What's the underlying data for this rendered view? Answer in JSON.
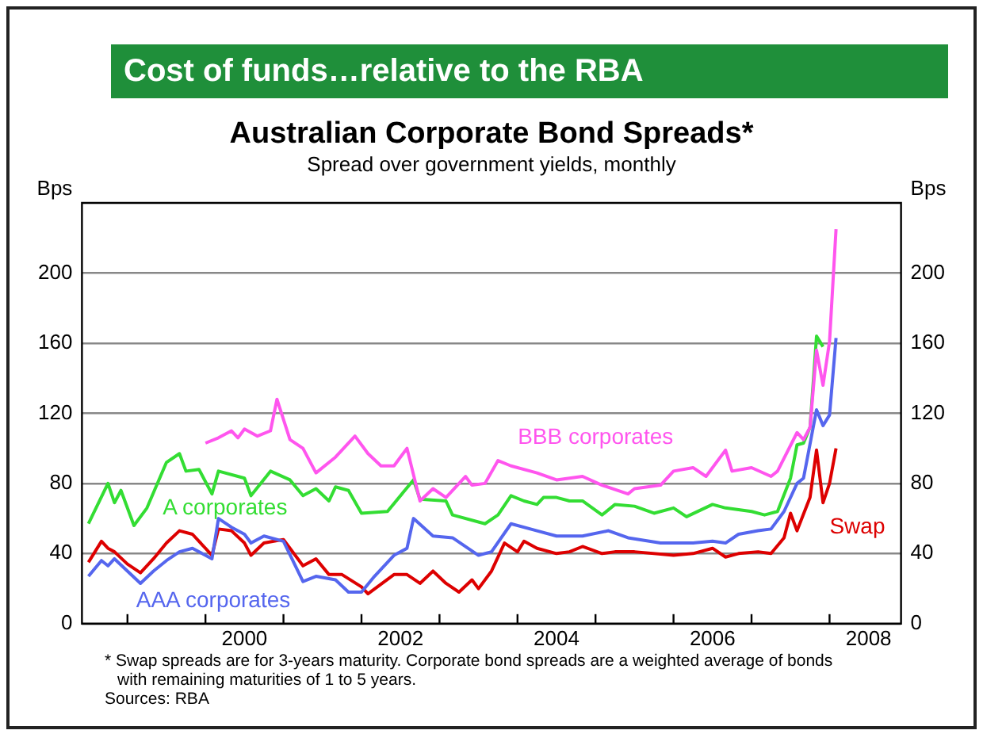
{
  "chart_data": {
    "type": "line",
    "title": "Australian Corporate Bond Spreads*",
    "subtitle": "Spread over government yields, monthly",
    "ylabel": "Bps",
    "y2label": "Bps",
    "xlim": [
      "1998-06",
      "2008-12"
    ],
    "xticks": [
      {
        "value": "1999",
        "label": null
      },
      {
        "value": "2000",
        "label": null
      },
      {
        "value": "2000-07",
        "label": "2000"
      },
      {
        "value": "2001",
        "label": null
      },
      {
        "value": "2002",
        "label": null
      },
      {
        "value": "2002-07",
        "label": "2002"
      },
      {
        "value": "2003",
        "label": null
      },
      {
        "value": "2004",
        "label": null
      },
      {
        "value": "2004-07",
        "label": "2004"
      },
      {
        "value": "2005",
        "label": null
      },
      {
        "value": "2006",
        "label": null
      },
      {
        "value": "2006-07",
        "label": "2006"
      },
      {
        "value": "2007",
        "label": null
      },
      {
        "value": "2008",
        "label": null
      },
      {
        "value": "2008-07",
        "label": "2008"
      }
    ],
    "ylim": [
      0,
      240
    ],
    "yticks": [
      0,
      40,
      80,
      120,
      160,
      200
    ],
    "y2lim": [
      0,
      240
    ],
    "y2ticks": [
      0,
      40,
      80,
      120,
      160,
      200
    ],
    "grid": "y",
    "legend": false,
    "marker": "none",
    "line_style": "solid",
    "series": [
      {
        "name": "BBB corporates",
        "color": "#ff55ee",
        "x": [
          "2000-01",
          "2000-03",
          "2000-05",
          "2000-06",
          "2000-07",
          "2000-09",
          "2000-11",
          "2000-12",
          "2001-02",
          "2001-04",
          "2001-06",
          "2001-09",
          "2001-12",
          "2002-02",
          "2002-04",
          "2002-06",
          "2002-08",
          "2002-10",
          "2002-12",
          "2003-02",
          "2003-05",
          "2003-06",
          "2003-08",
          "2003-10",
          "2003-12",
          "2004-04",
          "2004-07",
          "2004-11",
          "2005-02",
          "2005-06",
          "2005-07",
          "2005-11",
          "2006-01",
          "2006-04",
          "2006-06",
          "2006-09",
          "2006-10",
          "2007-01",
          "2007-04",
          "2007-05",
          "2007-08",
          "2007-09",
          "2007-10",
          "2007-11",
          "2007-12",
          "2008-01",
          "2008-02"
        ],
        "values": [
          103,
          106,
          110,
          106,
          111,
          107,
          110,
          128,
          105,
          100,
          86,
          95,
          107,
          97,
          90,
          90,
          100,
          70,
          77,
          72,
          84,
          79,
          80,
          93,
          90,
          86,
          82,
          84,
          79,
          74,
          77,
          79,
          87,
          89,
          84,
          99,
          87,
          89,
          84,
          87,
          109,
          105,
          112,
          156,
          136,
          161,
          225
        ]
      },
      {
        "name": "A corporates",
        "color": "#33dd33",
        "x": [
          "1998-07",
          "1998-10",
          "1998-11",
          "1998-12",
          "1999-02",
          "1999-04",
          "1999-07",
          "1999-09",
          "1999-10",
          "1999-12",
          "2000-02",
          "2000-03",
          "2000-07",
          "2000-08",
          "2000-11",
          "2001-02",
          "2001-04",
          "2001-06",
          "2001-08",
          "2001-09",
          "2001-11",
          "2002-01",
          "2002-05",
          "2002-09",
          "2002-10",
          "2003-02",
          "2003-03",
          "2003-08",
          "2003-10",
          "2003-12",
          "2004-02",
          "2004-04",
          "2004-05",
          "2004-07",
          "2004-09",
          "2004-11",
          "2005-02",
          "2005-04",
          "2005-07",
          "2005-10",
          "2006-01",
          "2006-03",
          "2006-07",
          "2006-09",
          "2007-01",
          "2007-03",
          "2007-05",
          "2007-07",
          "2007-08",
          "2007-09",
          "2007-10",
          "2007-11",
          "2007-12"
        ],
        "values": [
          57,
          80,
          69,
          76,
          56,
          66,
          92,
          97,
          87,
          88,
          74,
          87,
          83,
          73,
          87,
          82,
          73,
          77,
          70,
          78,
          76,
          63,
          64,
          82,
          71,
          70,
          62,
          57,
          62,
          73,
          70,
          68,
          72,
          72,
          70,
          70,
          62,
          68,
          67,
          63,
          66,
          61,
          68,
          66,
          64,
          62,
          64,
          83,
          102,
          103,
          112,
          164,
          158
        ]
      },
      {
        "name": "AAA corporates",
        "color": "#5566ee",
        "x": [
          "1998-07",
          "1998-09",
          "1998-10",
          "1998-11",
          "1999-01",
          "1999-03",
          "1999-05",
          "1999-07",
          "1999-09",
          "1999-11",
          "2000-02",
          "2000-03",
          "2000-05",
          "2000-07",
          "2000-08",
          "2000-10",
          "2001-01",
          "2001-04",
          "2001-06",
          "2001-09",
          "2001-11",
          "2002-01",
          "2002-03",
          "2002-06",
          "2002-08",
          "2002-09",
          "2002-12",
          "2003-03",
          "2003-07",
          "2003-09",
          "2003-12",
          "2004-04",
          "2004-07",
          "2004-11",
          "2005-03",
          "2005-06",
          "2005-11",
          "2006-04",
          "2006-07",
          "2006-09",
          "2006-11",
          "2007-02",
          "2007-04",
          "2007-06",
          "2007-08",
          "2007-09",
          "2007-11",
          "2007-12",
          "2008-01",
          "2008-02"
        ],
        "values": [
          27,
          36,
          33,
          37,
          30,
          23,
          30,
          36,
          41,
          43,
          37,
          60,
          55,
          51,
          46,
          50,
          47,
          24,
          27,
          25,
          18,
          18,
          27,
          39,
          43,
          60,
          50,
          49,
          39,
          41,
          57,
          53,
          50,
          50,
          53,
          49,
          46,
          46,
          47,
          46,
          51,
          53,
          54,
          64,
          80,
          83,
          122,
          113,
          119,
          163
        ]
      },
      {
        "name": "Swap",
        "color": "#dd0000",
        "x": [
          "1998-07",
          "1998-09",
          "1998-10",
          "1998-11",
          "1999-01",
          "1999-03",
          "1999-05",
          "1999-07",
          "1999-09",
          "1999-11",
          "2000-02",
          "2000-03",
          "2000-05",
          "2000-07",
          "2000-08",
          "2000-10",
          "2001-01",
          "2001-04",
          "2001-06",
          "2001-08",
          "2001-10",
          "2002-01",
          "2002-02",
          "2002-06",
          "2002-08",
          "2002-10",
          "2002-12",
          "2003-02",
          "2003-04",
          "2003-06",
          "2003-07",
          "2003-09",
          "2003-11",
          "2004-01",
          "2004-02",
          "2004-04",
          "2004-07",
          "2004-09",
          "2004-11",
          "2005-02",
          "2005-04",
          "2005-07",
          "2006-01",
          "2006-04",
          "2006-07",
          "2006-09",
          "2006-11",
          "2007-02",
          "2007-04",
          "2007-06",
          "2007-07",
          "2007-08",
          "2007-10",
          "2007-11",
          "2007-12",
          "2008-01",
          "2008-02"
        ],
        "values": [
          35,
          47,
          43,
          41,
          34,
          29,
          37,
          46,
          53,
          51,
          39,
          54,
          53,
          46,
          39,
          46,
          48,
          33,
          37,
          28,
          28,
          21,
          17,
          28,
          28,
          23,
          30,
          23,
          18,
          25,
          20,
          30,
          46,
          41,
          47,
          43,
          40,
          41,
          44,
          40,
          41,
          41,
          39,
          40,
          43,
          38,
          40,
          41,
          40,
          49,
          63,
          53,
          72,
          99,
          69,
          80,
          100
        ]
      }
    ],
    "annotations": [
      "Cost of funds…relative to the RBA",
      "* Swap spreads are for 3-years maturity. Corporate bond spreads are a weighted average of bonds with remaining maturities of 1 to 5 years.",
      "Sources: RBA"
    ]
  }
}
